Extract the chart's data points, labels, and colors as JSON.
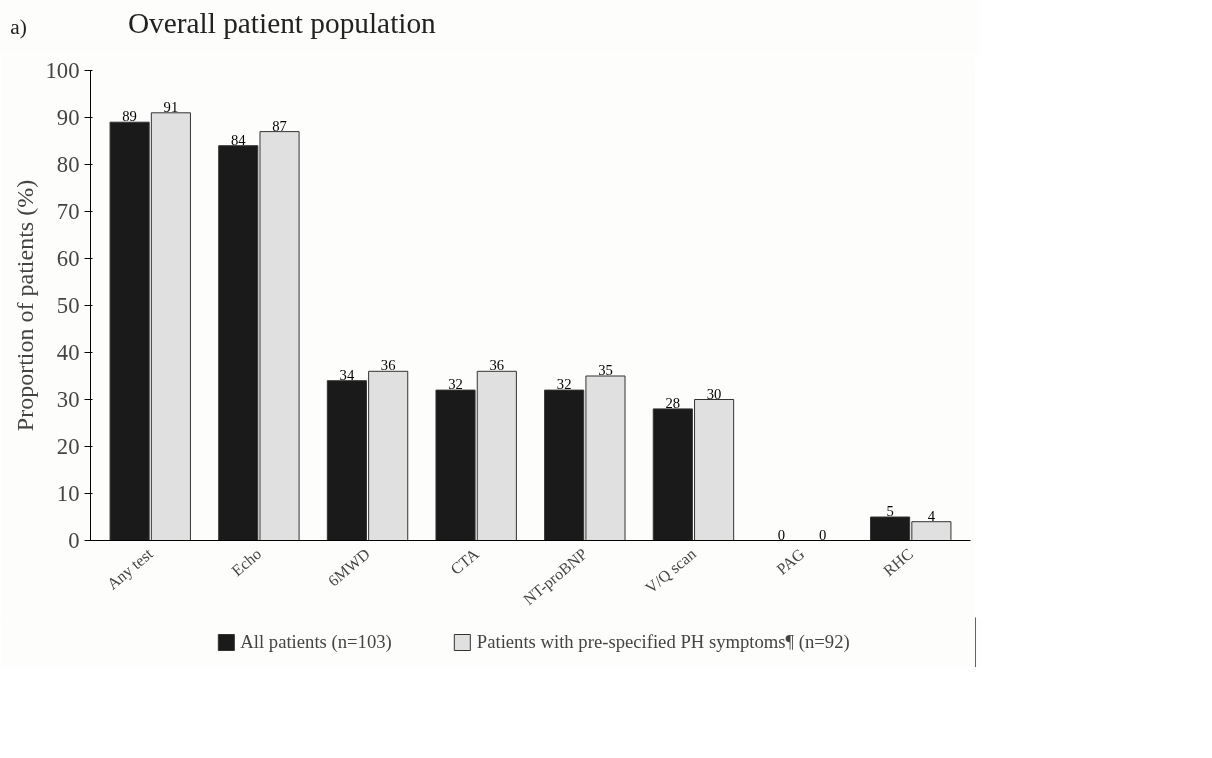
{
  "chart_data": {
    "type": "bar",
    "title": "Overall patient population",
    "ylabel": "Proportion of patients (%)",
    "annotations": [
      "a)"
    ],
    "categories": [
      "Any test",
      "Echo",
      "6MWD",
      "CTA",
      "NT-proBNP",
      "V/Q scan",
      "PAG",
      "RHC"
    ],
    "series": [
      {
        "name": "All patients (n=103)",
        "color": "#1a1a1a",
        "values": [
          89,
          84,
          34,
          32,
          32,
          28,
          0,
          5
        ]
      },
      {
        "name": "Patients with pre-specified PH symptoms¶ (n=92)",
        "color": "#e0e0e0",
        "values": [
          91,
          87,
          36,
          36,
          35,
          30,
          0,
          4
        ]
      }
    ],
    "ylim": [
      0,
      100
    ],
    "yticks": [
      0,
      10,
      20,
      30,
      40,
      50,
      60,
      70,
      80,
      90,
      100
    ],
    "data_labels": true,
    "grid": false,
    "legend": "bottom"
  }
}
